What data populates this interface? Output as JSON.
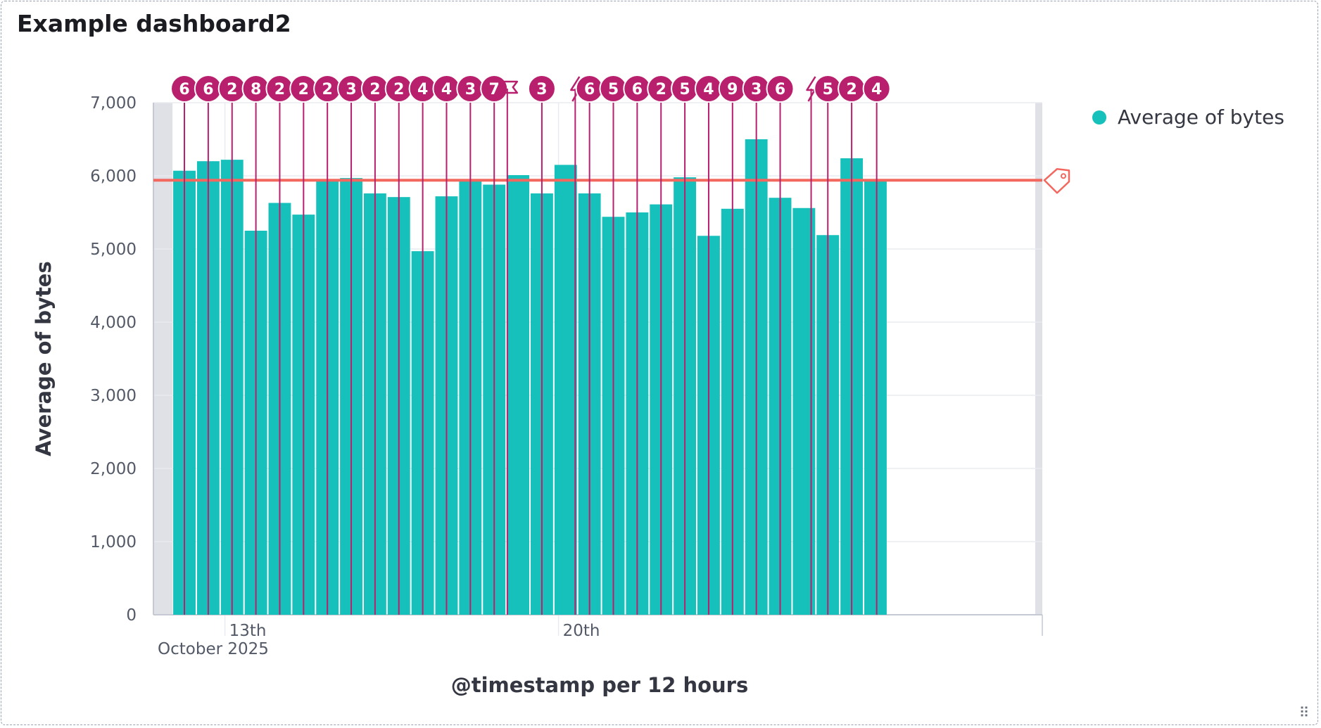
{
  "panel": {
    "title": "Example dashboard2"
  },
  "colors": {
    "bar": "#16c1bb",
    "annotation": "#b8206e",
    "threshold": "#f2685f",
    "gutter": "#dfe1e7",
    "grid": "#e8ebf0",
    "axis": "#c4c9d3"
  },
  "icons": {
    "threshold": "tag-icon",
    "annotation_alt": "bolt-icon",
    "annotation_flag": "flag-icon",
    "resize": "resize-handle-icon"
  },
  "chart_data": {
    "type": "bar",
    "title": "",
    "xlabel": "@timestamp per 12 hours",
    "ylabel": "Average of bytes",
    "ylim": [
      0,
      7000
    ],
    "y_ticks": [
      0,
      1000,
      2000,
      3000,
      4000,
      5000,
      6000,
      7000
    ],
    "y_tick_labels": [
      "0",
      "1,000",
      "2,000",
      "3,000",
      "4,000",
      "5,000",
      "6,000",
      "7,000"
    ],
    "x_domain": [
      0,
      37.3
    ],
    "x_ticks": [
      {
        "pos": 3.0,
        "label": "13th"
      },
      {
        "pos": 17.0,
        "label": "20th"
      }
    ],
    "x_sublabel": "October 2025",
    "gutter_slots": 0.8,
    "series": [
      {
        "name": "Average of bytes",
        "values": [
          6070,
          6200,
          6220,
          5250,
          5630,
          5470,
          5940,
          5970,
          5760,
          5710,
          4970,
          5720,
          5950,
          5880,
          6010,
          5760,
          6150,
          5760,
          5440,
          5500,
          5610,
          5980,
          5180,
          5550,
          6500,
          5700,
          5560,
          5190,
          6240,
          5950
        ]
      }
    ],
    "threshold": 5940,
    "annotations": [
      {
        "pos": 1.3,
        "label": "6",
        "kind": "count"
      },
      {
        "pos": 2.3,
        "label": "6",
        "kind": "count"
      },
      {
        "pos": 3.3,
        "label": "2",
        "kind": "count"
      },
      {
        "pos": 4.3,
        "label": "8",
        "kind": "count"
      },
      {
        "pos": 5.3,
        "label": "2",
        "kind": "count"
      },
      {
        "pos": 6.3,
        "label": "2",
        "kind": "count"
      },
      {
        "pos": 7.3,
        "label": "2",
        "kind": "count"
      },
      {
        "pos": 8.3,
        "label": "3",
        "kind": "count"
      },
      {
        "pos": 9.3,
        "label": "2",
        "kind": "count"
      },
      {
        "pos": 10.3,
        "label": "2",
        "kind": "count"
      },
      {
        "pos": 11.3,
        "label": "4",
        "kind": "count"
      },
      {
        "pos": 12.3,
        "label": "4",
        "kind": "count"
      },
      {
        "pos": 13.3,
        "label": "3",
        "kind": "count"
      },
      {
        "pos": 14.3,
        "label": "7",
        "kind": "count"
      },
      {
        "pos": 14.85,
        "label": "",
        "kind": "flag"
      },
      {
        "pos": 16.3,
        "label": "3",
        "kind": "count"
      },
      {
        "pos": 17.7,
        "label": "",
        "kind": "bolt"
      },
      {
        "pos": 18.3,
        "label": "6",
        "kind": "count"
      },
      {
        "pos": 19.3,
        "label": "5",
        "kind": "count"
      },
      {
        "pos": 20.3,
        "label": "6",
        "kind": "count"
      },
      {
        "pos": 21.3,
        "label": "2",
        "kind": "count"
      },
      {
        "pos": 22.3,
        "label": "5",
        "kind": "count"
      },
      {
        "pos": 23.3,
        "label": "4",
        "kind": "count"
      },
      {
        "pos": 24.3,
        "label": "9",
        "kind": "count"
      },
      {
        "pos": 25.3,
        "label": "3",
        "kind": "count"
      },
      {
        "pos": 26.3,
        "label": "6",
        "kind": "count"
      },
      {
        "pos": 27.6,
        "label": "",
        "kind": "bolt"
      },
      {
        "pos": 28.3,
        "label": "5",
        "kind": "count"
      },
      {
        "pos": 29.3,
        "label": "2",
        "kind": "count"
      },
      {
        "pos": 30.35,
        "label": "4",
        "kind": "count"
      }
    ]
  }
}
